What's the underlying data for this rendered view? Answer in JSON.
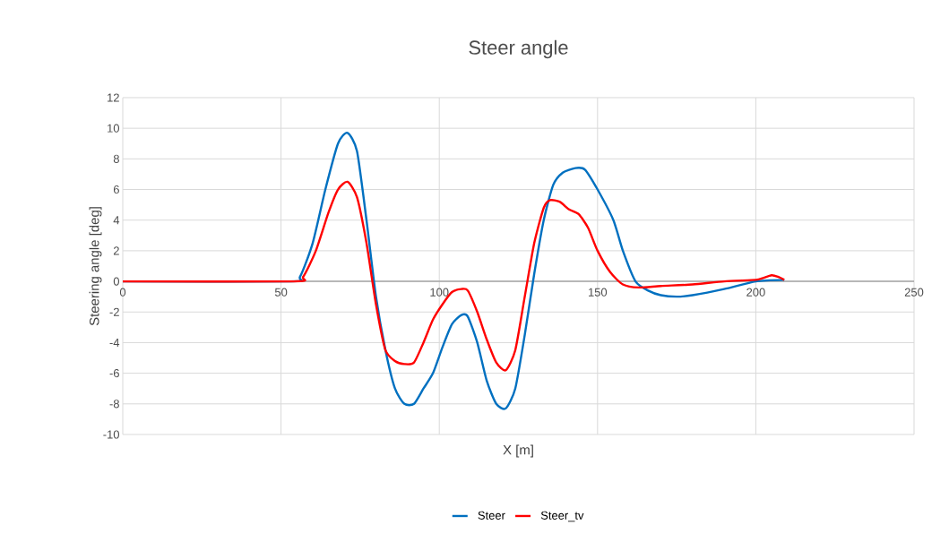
{
  "chart_data": {
    "type": "line",
    "title": "Steer angle",
    "xlabel": "X [m]",
    "ylabel": "Steering angle [deg]",
    "xlim": [
      0,
      250
    ],
    "xticks": [
      0,
      50,
      100,
      150,
      200,
      250
    ],
    "ylim": [
      -10,
      12
    ],
    "yticks": [
      -10,
      -8,
      -6,
      -4,
      -2,
      0,
      2,
      4,
      6,
      8,
      10,
      12
    ],
    "grid": true,
    "legend": "bottom",
    "line_style": "solid",
    "marker": "none",
    "series": [
      {
        "name": "Steer",
        "color": "#0070c0",
        "x": [
          0,
          53,
          56,
          60,
          64,
          68,
          71,
          74,
          77,
          80,
          83,
          86,
          89,
          92,
          95,
          98,
          101,
          104,
          107,
          109,
          112,
          115,
          118,
          121,
          124,
          127,
          130,
          133,
          136,
          139,
          143,
          146,
          150,
          155,
          158,
          162,
          166,
          170,
          175,
          180,
          190,
          200,
          209
        ],
        "values": [
          0,
          0,
          0.3,
          2.5,
          6,
          9,
          9.7,
          8.5,
          4,
          -1,
          -4.5,
          -7,
          -8,
          -8,
          -7,
          -6,
          -4.3,
          -2.8,
          -2.2,
          -2.3,
          -4,
          -6.5,
          -8,
          -8.3,
          -7,
          -3.5,
          0.5,
          4,
          6.3,
          7.1,
          7.4,
          7.3,
          6,
          4,
          2,
          0,
          -0.6,
          -0.9,
          -1,
          -0.9,
          -0.5,
          0,
          0.1
        ]
      },
      {
        "name": "Steer_tv",
        "color": "#ff0000",
        "x": [
          0,
          54,
          57,
          61,
          65,
          68,
          71,
          74,
          77,
          80,
          83,
          86,
          89,
          92,
          95,
          98,
          101,
          104,
          107,
          109,
          112,
          115,
          118,
          121,
          124,
          127,
          130,
          133,
          135,
          138,
          141,
          144,
          147,
          150,
          154,
          158,
          163,
          170,
          180,
          190,
          200,
          202,
          205,
          207,
          209
        ],
        "values": [
          0,
          0,
          0.3,
          2,
          4.5,
          6,
          6.5,
          5.5,
          2.5,
          -1.5,
          -4.5,
          -5.2,
          -5.4,
          -5.3,
          -4,
          -2.5,
          -1.5,
          -0.7,
          -0.5,
          -0.6,
          -2,
          -3.8,
          -5.3,
          -5.8,
          -4.5,
          -1,
          2.5,
          4.8,
          5.3,
          5.2,
          4.7,
          4.4,
          3.5,
          2,
          0.6,
          -0.2,
          -0.4,
          -0.3,
          -0.2,
          0,
          0.1,
          0.2,
          0.4,
          0.3,
          0.1
        ]
      }
    ]
  }
}
